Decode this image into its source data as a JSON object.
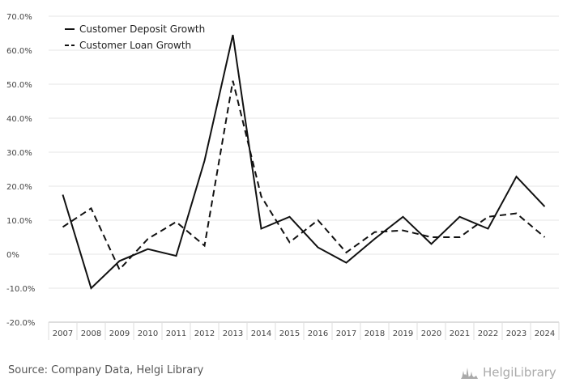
{
  "source": "Source: Company Data, Helgi Library",
  "brand": {
    "name": "HelgiLibrary",
    "icon": "helgi-library-logo-icon",
    "color": "#aaaaaa"
  },
  "chart_data": {
    "type": "line",
    "title": "",
    "xlabel": "",
    "ylabel": "",
    "ylim": [
      -20,
      70
    ],
    "yticks": [
      -20,
      -10,
      0,
      10,
      20,
      30,
      40,
      50,
      60,
      70
    ],
    "ytick_labels": [
      "-20.0%",
      "-10.0%",
      "0%",
      "10.0%",
      "20.0%",
      "30.0%",
      "40.0%",
      "50.0%",
      "60.0%",
      "70.0%"
    ],
    "grid": "horizontal",
    "legend_position": "top-left",
    "categories": [
      "2007",
      "2008",
      "2009",
      "2010",
      "2011",
      "2012",
      "2013",
      "2014",
      "2015",
      "2016",
      "2017",
      "2018",
      "2019",
      "2020",
      "2021",
      "2022",
      "2023",
      "2024"
    ],
    "series": [
      {
        "name": "Customer Deposit Growth",
        "style": "solid",
        "color": "#111111",
        "values": [
          17.5,
          -10.0,
          -2.0,
          1.5,
          -0.5,
          27.5,
          64.5,
          7.5,
          11.0,
          2.0,
          -2.5,
          4.5,
          11.0,
          3.0,
          11.0,
          7.5,
          22.8,
          14.0
        ]
      },
      {
        "name": "Customer Loan Growth",
        "style": "dashed",
        "color": "#111111",
        "values": [
          8.0,
          13.5,
          -4.5,
          4.5,
          9.5,
          2.5,
          51.0,
          17.0,
          3.5,
          10.0,
          0.5,
          6.5,
          7.0,
          5.0,
          5.0,
          11.0,
          12.0,
          5.0
        ]
      }
    ]
  }
}
